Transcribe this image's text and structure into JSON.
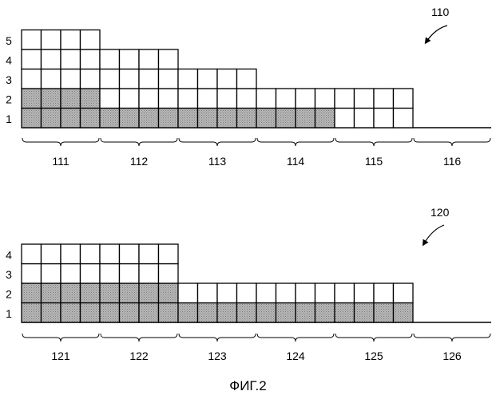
{
  "figure_caption": "ФИГ.2",
  "colors": {
    "shaded": "#b4b4b4",
    "line": "#000000",
    "background": "#ffffff"
  },
  "diagrams": [
    {
      "ref": "110",
      "level_labels": [
        "1",
        "2",
        "3",
        "4",
        "5"
      ],
      "groups": [
        {
          "label": "111",
          "columns": 4,
          "rows": 5,
          "shaded_rows": 2
        },
        {
          "label": "112",
          "columns": 4,
          "rows": 4,
          "shaded_rows": 1
        },
        {
          "label": "113",
          "columns": 4,
          "rows": 3,
          "shaded_rows": 1
        },
        {
          "label": "114",
          "columns": 4,
          "rows": 2,
          "shaded_rows": 1
        },
        {
          "label": "115",
          "columns": 4,
          "rows": 2,
          "shaded_rows": 0
        },
        {
          "label": "116",
          "columns": 4,
          "rows": 0,
          "shaded_rows": 0
        }
      ]
    },
    {
      "ref": "120",
      "level_labels": [
        "1",
        "2",
        "3",
        "4"
      ],
      "groups": [
        {
          "label": "121",
          "columns": 4,
          "rows": 4,
          "shaded_rows": 2
        },
        {
          "label": "122",
          "columns": 4,
          "rows": 4,
          "shaded_rows": 2
        },
        {
          "label": "123",
          "columns": 4,
          "rows": 2,
          "shaded_rows": 1
        },
        {
          "label": "124",
          "columns": 4,
          "rows": 2,
          "shaded_rows": 1
        },
        {
          "label": "125",
          "columns": 4,
          "rows": 2,
          "shaded_rows": 1
        },
        {
          "label": "126",
          "columns": 4,
          "rows": 0,
          "shaded_rows": 0
        }
      ]
    }
  ]
}
